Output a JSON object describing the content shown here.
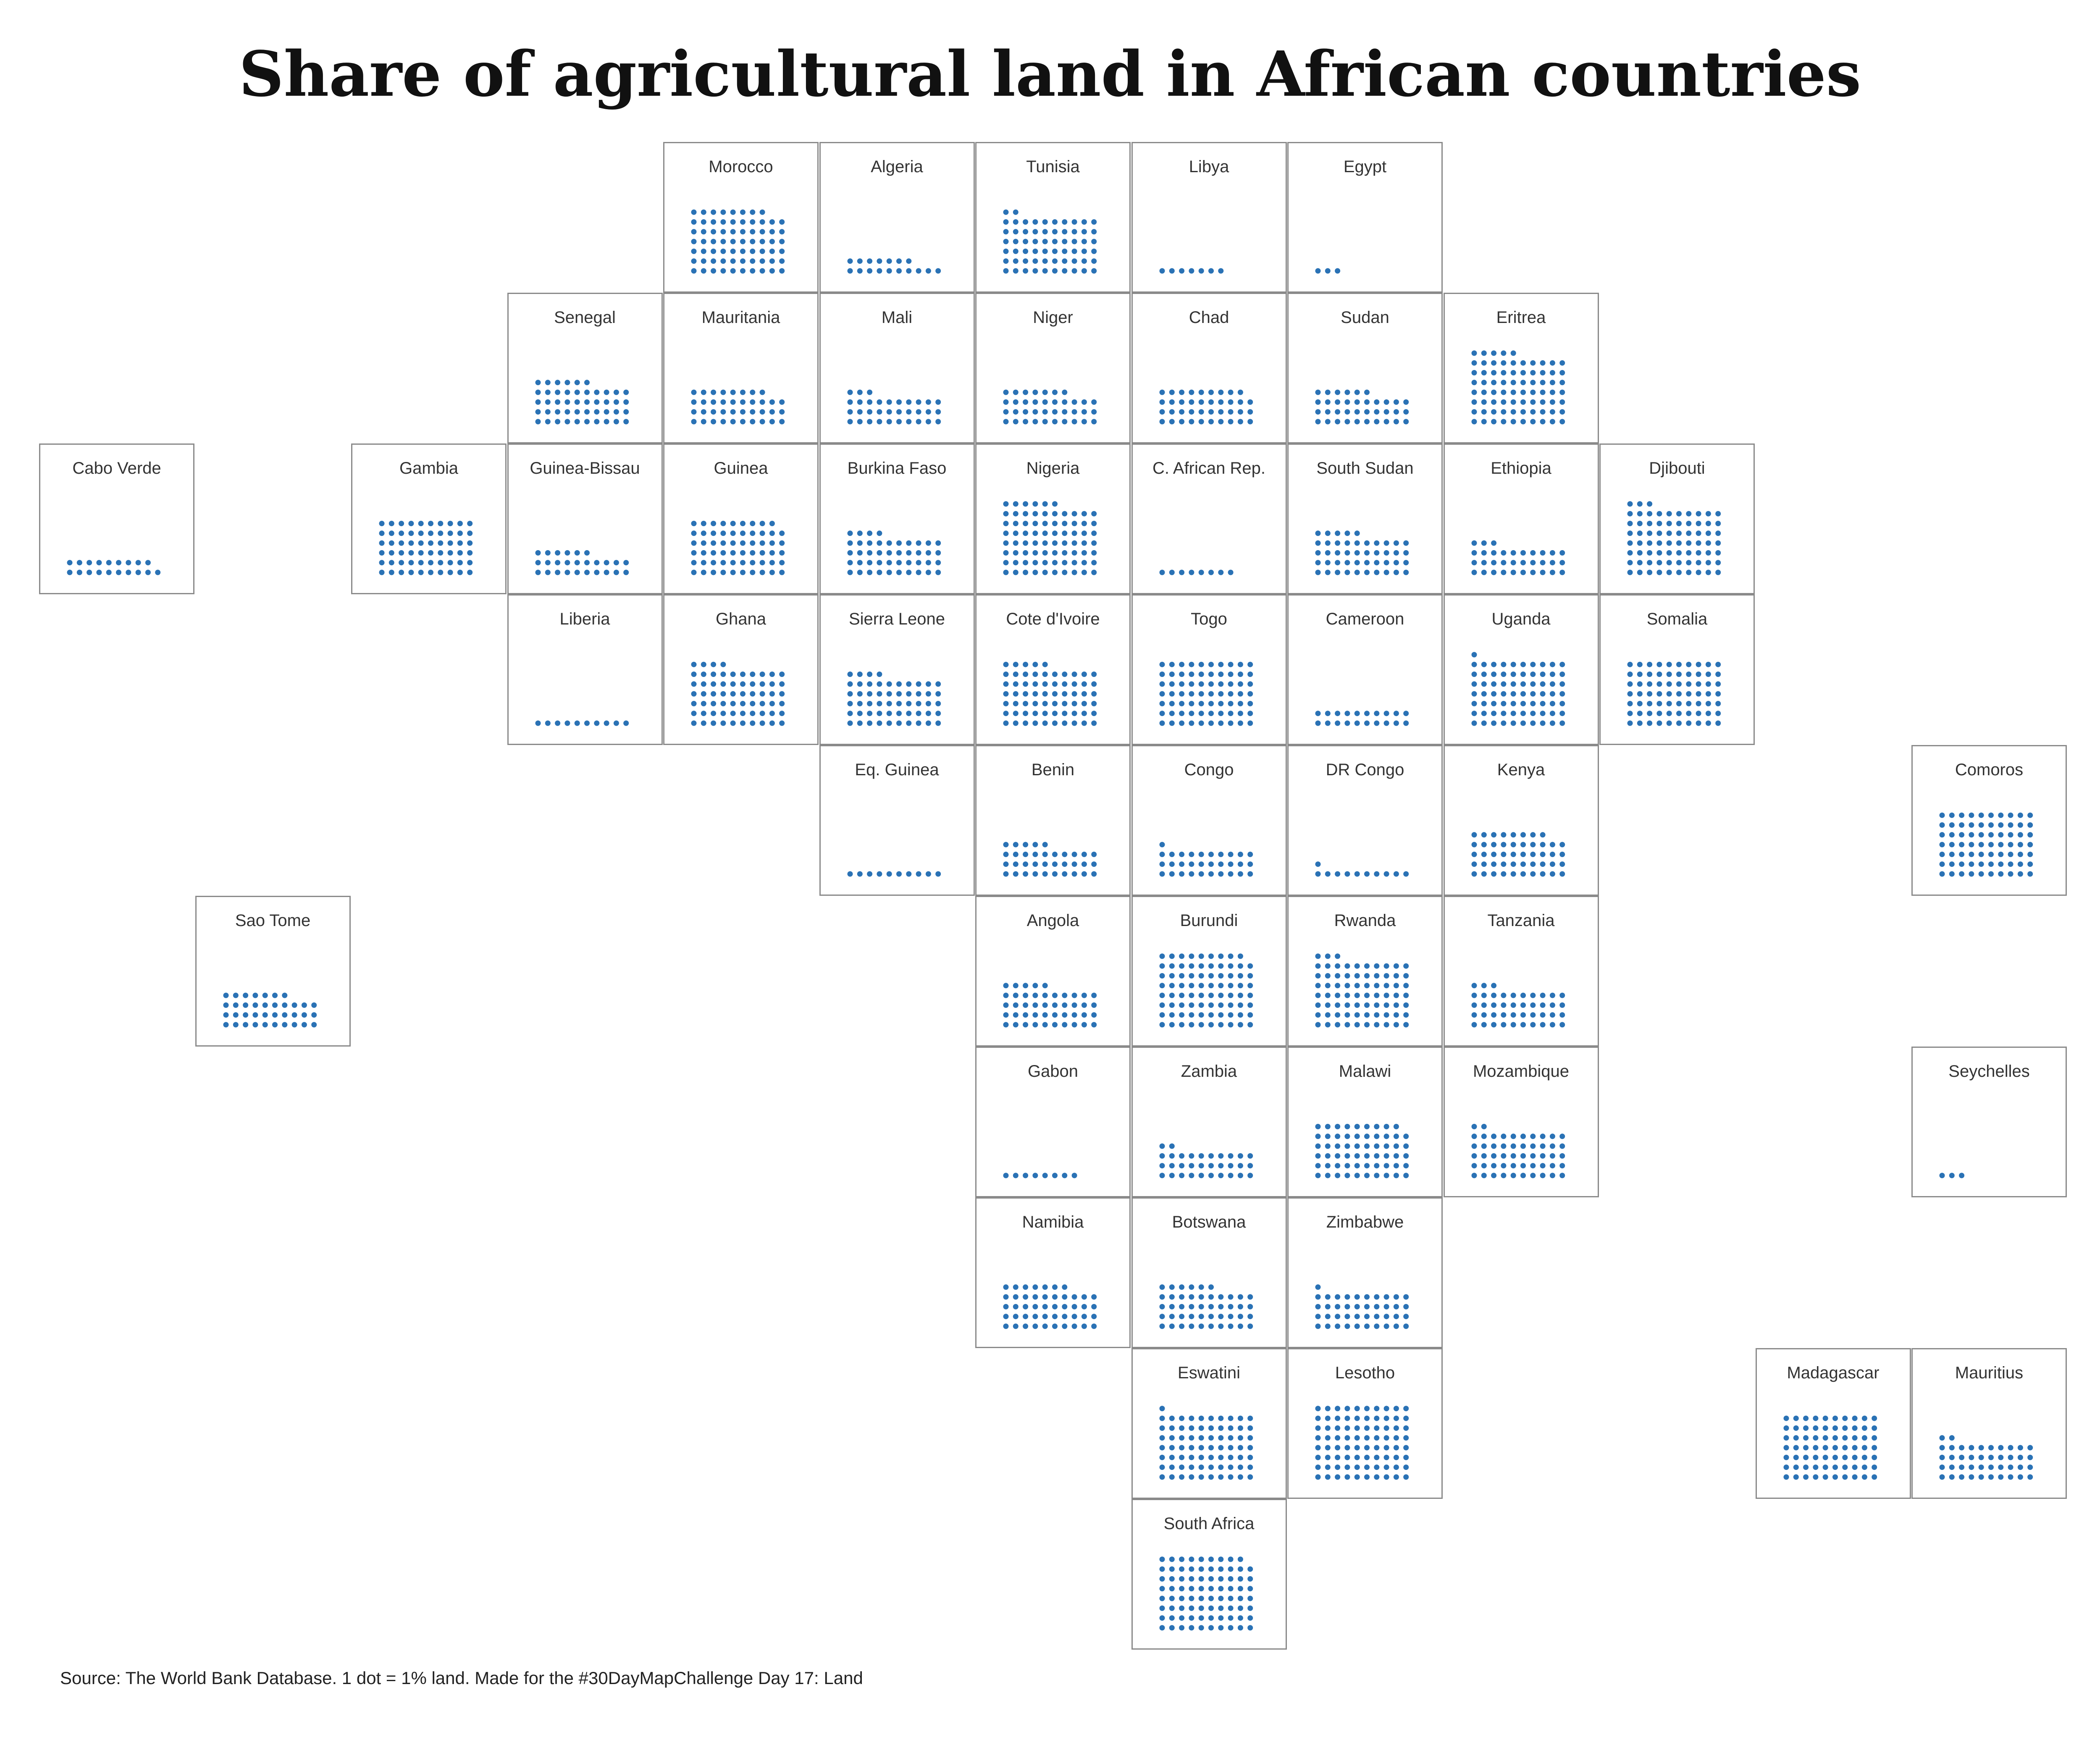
{
  "title": "Share of agricultural land in African countries",
  "source": "Source: The World Bank Database. 1 dot = 1% land. Made for the #30DayMapChallenge Day 17: Land",
  "legend_unit": "1 dot = 1% land",
  "dot_color": "#2a72b5",
  "border_color": "#8a8a8a",
  "map_data": {
    "type": "tile-grid dot map",
    "countries": [
      {
        "name": "Morocco",
        "row": 0,
        "col": 4,
        "share": 68
      },
      {
        "name": "Algeria",
        "row": 0,
        "col": 5,
        "share": 17
      },
      {
        "name": "Tunisia",
        "row": 0,
        "col": 6,
        "share": 62
      },
      {
        "name": "Libya",
        "row": 0,
        "col": 7,
        "share": 7
      },
      {
        "name": "Egypt",
        "row": 0,
        "col": 8,
        "share": 3
      },
      {
        "name": "Senegal",
        "row": 1,
        "col": 3,
        "share": 46
      },
      {
        "name": "Mauritania",
        "row": 1,
        "col": 4,
        "share": 38
      },
      {
        "name": "Mali",
        "row": 1,
        "col": 5,
        "share": 33
      },
      {
        "name": "Niger",
        "row": 1,
        "col": 6,
        "share": 37
      },
      {
        "name": "Chad",
        "row": 1,
        "col": 7,
        "share": 39
      },
      {
        "name": "Sudan",
        "row": 1,
        "col": 8,
        "share": 36
      },
      {
        "name": "Eritrea",
        "row": 1,
        "col": 9,
        "share": 75
      },
      {
        "name": "Cabo Verde",
        "row": 2,
        "col": 0,
        "share": 19
      },
      {
        "name": "Gambia",
        "row": 2,
        "col": 2,
        "share": 60
      },
      {
        "name": "Guinea-Bissau",
        "row": 2,
        "col": 3,
        "share": 26
      },
      {
        "name": "Guinea",
        "row": 2,
        "col": 4,
        "share": 59
      },
      {
        "name": "Burkina Faso",
        "row": 2,
        "col": 5,
        "share": 44
      },
      {
        "name": "Nigeria",
        "row": 2,
        "col": 6,
        "share": 76
      },
      {
        "name": "C. African Rep.",
        "row": 2,
        "col": 7,
        "share": 8
      },
      {
        "name": "South Sudan",
        "row": 2,
        "col": 8,
        "share": 45
      },
      {
        "name": "Ethiopia",
        "row": 2,
        "col": 9,
        "share": 33
      },
      {
        "name": "Djibouti",
        "row": 2,
        "col": 10,
        "share": 73
      },
      {
        "name": "Liberia",
        "row": 3,
        "col": 3,
        "share": 10
      },
      {
        "name": "Ghana",
        "row": 3,
        "col": 4,
        "share": 64
      },
      {
        "name": "Sierra Leone",
        "row": 3,
        "col": 5,
        "share": 54
      },
      {
        "name": "Cote d'Ivoire",
        "row": 3,
        "col": 6,
        "share": 65
      },
      {
        "name": "Togo",
        "row": 3,
        "col": 7,
        "share": 70
      },
      {
        "name": "Cameroon",
        "row": 3,
        "col": 8,
        "share": 20
      },
      {
        "name": "Uganda",
        "row": 3,
        "col": 9,
        "share": 71
      },
      {
        "name": "Somalia",
        "row": 3,
        "col": 10,
        "share": 70
      },
      {
        "name": "Comoros",
        "row": 4,
        "col": 12,
        "share": 70
      },
      {
        "name": "Eq. Guinea",
        "row": 4,
        "col": 5,
        "share": 10
      },
      {
        "name": "Benin",
        "row": 4,
        "col": 6,
        "share": 35
      },
      {
        "name": "Congo",
        "row": 4,
        "col": 7,
        "share": 31
      },
      {
        "name": "DR Congo",
        "row": 4,
        "col": 8,
        "share": 11
      },
      {
        "name": "Kenya",
        "row": 4,
        "col": 9,
        "share": 48
      },
      {
        "name": "Sao Tome",
        "row": 5,
        "col": 1,
        "share": 37
      },
      {
        "name": "Angola",
        "row": 5,
        "col": 6,
        "share": 45
      },
      {
        "name": "Burundi",
        "row": 5,
        "col": 7,
        "share": 79
      },
      {
        "name": "Rwanda",
        "row": 5,
        "col": 8,
        "share": 73
      },
      {
        "name": "Tanzania",
        "row": 5,
        "col": 9,
        "share": 43
      },
      {
        "name": "Gabon",
        "row": 6,
        "col": 6,
        "share": 8
      },
      {
        "name": "Zambia",
        "row": 6,
        "col": 7,
        "share": 32
      },
      {
        "name": "Malawi",
        "row": 6,
        "col": 8,
        "share": 59
      },
      {
        "name": "Mozambique",
        "row": 6,
        "col": 9,
        "share": 52
      },
      {
        "name": "Seychelles",
        "row": 6,
        "col": 12,
        "share": 3
      },
      {
        "name": "Namibia",
        "row": 7,
        "col": 6,
        "share": 47
      },
      {
        "name": "Botswana",
        "row": 7,
        "col": 7,
        "share": 46
      },
      {
        "name": "Zimbabwe",
        "row": 7,
        "col": 8,
        "share": 41
      },
      {
        "name": "Eswatini",
        "row": 8,
        "col": 7,
        "share": 71
      },
      {
        "name": "Lesotho",
        "row": 8,
        "col": 8,
        "share": 80
      },
      {
        "name": "Madagascar",
        "row": 8,
        "col": 11,
        "share": 70
      },
      {
        "name": "Mauritius",
        "row": 8,
        "col": 12,
        "share": 42
      },
      {
        "name": "South Africa",
        "row": 9,
        "col": 7,
        "share": 79
      }
    ]
  }
}
